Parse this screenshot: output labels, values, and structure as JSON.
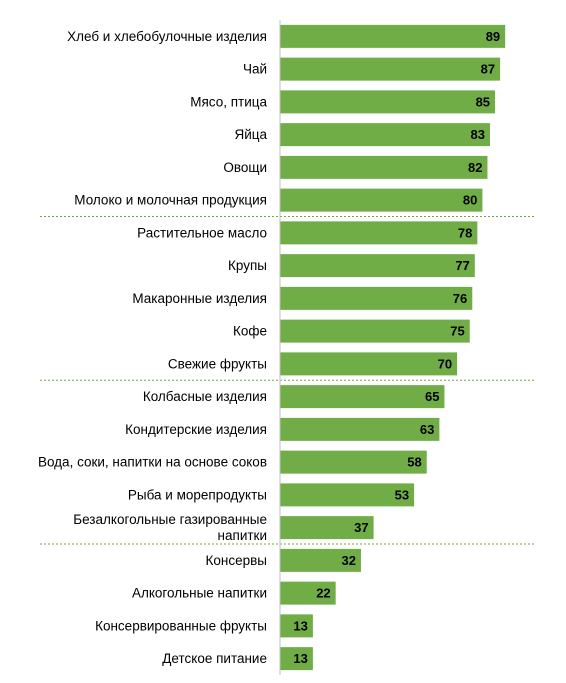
{
  "chart_data": {
    "type": "bar",
    "orientation": "horizontal",
    "title": "",
    "xlabel": "",
    "ylabel": "",
    "xlim": [
      0,
      100
    ],
    "grid": false,
    "legend": "none",
    "bar_color": "#70ad47",
    "separator_color": "#70a744",
    "categories": [
      "Хлеб и хлебобулочные изделия",
      "Чай",
      "Мясо, птица",
      "Яйца",
      "Овощи",
      "Молоко и молочная продукция",
      "Растительное масло",
      "Крупы",
      "Макаронные изделия",
      "Кофе",
      "Свежие фрукты",
      "Колбасные изделия",
      "Кондитерские изделия",
      "Вода, соки, напитки на основе соков",
      "Рыба и морепродукты",
      "Безалкогольные газированные напитки",
      "Консервы",
      "Алкогольные напитки",
      "Консервированные фрукты",
      "Детское питание"
    ],
    "category_lines": [
      [
        "Хлеб и хлебобулочные изделия"
      ],
      [
        "Чай"
      ],
      [
        "Мясо, птица"
      ],
      [
        "Яйца"
      ],
      [
        "Овощи"
      ],
      [
        "Молоко и молочная продукция"
      ],
      [
        "Растительное масло"
      ],
      [
        "Крупы"
      ],
      [
        "Макаронные изделия"
      ],
      [
        "Кофе"
      ],
      [
        "Свежие фрукты"
      ],
      [
        "Колбасные изделия"
      ],
      [
        "Кондитерские изделия"
      ],
      [
        "Вода, соки, напитки на основе соков"
      ],
      [
        "Рыба и морепродукты"
      ],
      [
        "Безалкогольные газированные",
        "напитки"
      ],
      [
        "Консервы"
      ],
      [
        "Алкогольные напитки"
      ],
      [
        "Консервированные фрукты"
      ],
      [
        "Детское питание"
      ]
    ],
    "values": [
      89,
      87,
      85,
      83,
      82,
      80,
      78,
      77,
      76,
      75,
      70,
      65,
      63,
      58,
      53,
      37,
      32,
      22,
      13,
      13
    ],
    "group_separators_after": [
      5,
      10,
      15
    ]
  }
}
